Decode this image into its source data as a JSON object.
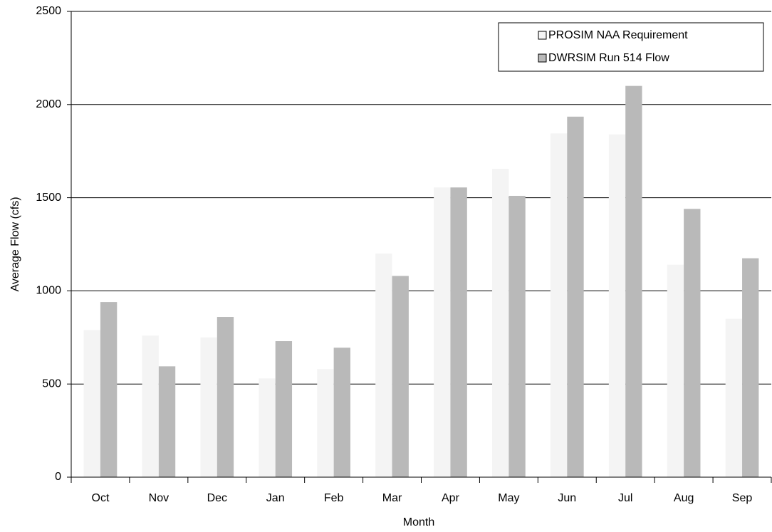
{
  "chart_data": {
    "type": "bar",
    "x_label": "Month",
    "y_label": "Average Flow (cfs)",
    "categories": [
      "Oct",
      "Nov",
      "Dec",
      "Jan",
      "Feb",
      "Mar",
      "Apr",
      "May",
      "Jun",
      "Jul",
      "Aug",
      "Sep"
    ],
    "series": [
      {
        "name": "PROSIM NAA Requirement",
        "color": "#f4f4f4",
        "values": [
          790,
          760,
          750,
          530,
          580,
          1200,
          1555,
          1655,
          1845,
          1840,
          1140,
          850
        ]
      },
      {
        "name": "DWRSIM Run 514 Flow",
        "color": "#b9b9b9",
        "values": [
          940,
          595,
          860,
          730,
          695,
          1080,
          1555,
          1510,
          1935,
          2100,
          1440,
          1175
        ]
      }
    ],
    "ylim": [
      0,
      2500
    ],
    "yticks": [
      0,
      500,
      1000,
      1500,
      2000,
      2500
    ],
    "grid": true,
    "legend": "top-right"
  }
}
